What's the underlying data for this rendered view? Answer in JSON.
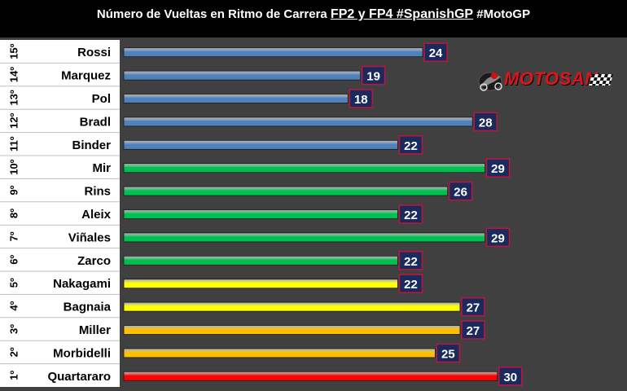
{
  "title": {
    "prefix": "Número de Vueltas en Ritmo de Carrera ",
    "highlight": "FP2 y FP4 #SpanishGP",
    "suffix": " #MotoGP"
  },
  "logo": {
    "text": "MOTOSAN",
    "icon": "motorcycle-rider-icon"
  },
  "colors": {
    "background": "#000000",
    "plot_area": "#404040",
    "label_panel": "#ffffff",
    "value_box": "#1a2a5c",
    "value_box_border": "#c0143c"
  },
  "chart_data": {
    "type": "bar",
    "orientation": "horizontal",
    "title": "Número de Vueltas en Ritmo de Carrera FP2 y FP4 #SpanishGP #MotoGP",
    "xlim": [
      0,
      34
    ],
    "grid": false,
    "legend": "none",
    "rows": [
      {
        "position": "15º",
        "rider": "Rossi",
        "value": 24,
        "color": "#4f81bd"
      },
      {
        "position": "14º",
        "rider": "Marquez",
        "value": 19,
        "color": "#4f81bd"
      },
      {
        "position": "13º",
        "rider": "Pol",
        "value": 18,
        "color": "#4f81bd"
      },
      {
        "position": "12º",
        "rider": "Bradl",
        "value": 28,
        "color": "#4f81bd"
      },
      {
        "position": "11º",
        "rider": "Binder",
        "value": 22,
        "color": "#4f81bd"
      },
      {
        "position": "10º",
        "rider": "Mir",
        "value": 29,
        "color": "#00c050"
      },
      {
        "position": "9º",
        "rider": "Rins",
        "value": 26,
        "color": "#00c050"
      },
      {
        "position": "8º",
        "rider": "Aleix",
        "value": 22,
        "color": "#00c050"
      },
      {
        "position": "7º",
        "rider": "Viñales",
        "value": 29,
        "color": "#00c050"
      },
      {
        "position": "6º",
        "rider": "Zarco",
        "value": 22,
        "color": "#00c050"
      },
      {
        "position": "5º",
        "rider": "Nakagami",
        "value": 22,
        "color": "#ffff00"
      },
      {
        "position": "4º",
        "rider": "Bagnaia",
        "value": 27,
        "color": "#ffff00"
      },
      {
        "position": "3º",
        "rider": "Miller",
        "value": 27,
        "color": "#ffc000"
      },
      {
        "position": "2º",
        "rider": "Morbidelli",
        "value": 25,
        "color": "#ffc000"
      },
      {
        "position": "1º",
        "rider": "Quartararo",
        "value": 30,
        "color": "#ff0000"
      }
    ]
  }
}
